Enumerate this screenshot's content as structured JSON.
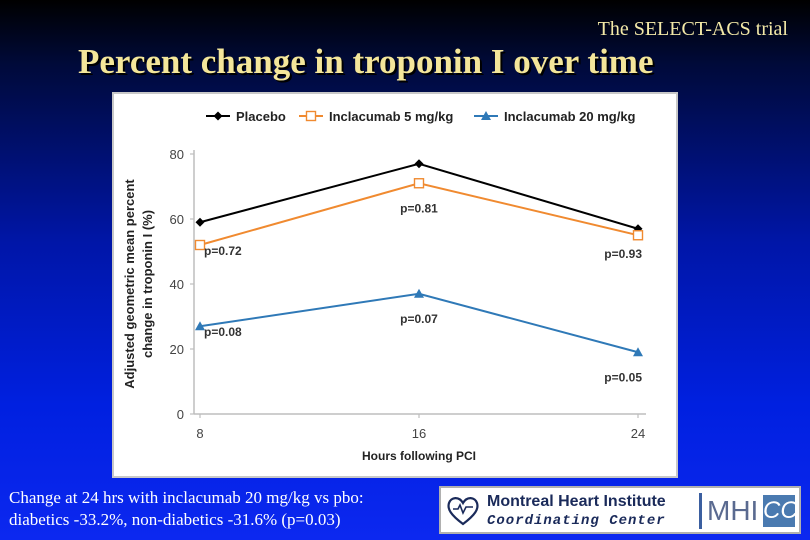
{
  "header": {
    "trial_label": "The SELECT-ACS trial",
    "title": "Percent change in troponin I over time"
  },
  "footnote": {
    "line1": "Change at 24 hrs with inclacumab 20 mg/kg vs pbo:",
    "line2": "diabetics -33.2%, non-diabetics -31.6% (p=0.03)"
  },
  "logo": {
    "line1": "Montreal Heart Institute",
    "line2": "Coordinating Center",
    "mhi": "MHI",
    "cc": "CC",
    "heart_icon": "heart-outline-icon"
  },
  "chart_data": {
    "type": "line",
    "x": [
      8,
      16,
      24
    ],
    "xlabel": "Hours following PCI",
    "ylabel_line1": "Adjusted geometric mean percent",
    "ylabel_line2": "change in troponin I (%)",
    "ylim": [
      0,
      80
    ],
    "yticks": [
      0,
      20,
      40,
      60,
      80
    ],
    "legend_placement": "top",
    "series": [
      {
        "name": "Placebo",
        "values": [
          59,
          77,
          57
        ],
        "color": "#000000",
        "marker": "diamond"
      },
      {
        "name": "Inclacumab 5 mg/kg",
        "values": [
          52,
          71,
          55
        ],
        "color": "#f08a30",
        "marker": "square-open"
      },
      {
        "name": "Inclacumab 20 mg/kg",
        "values": [
          27,
          37,
          19
        ],
        "color": "#2f79b7",
        "marker": "triangle"
      }
    ],
    "annotations": [
      {
        "text": "p=0.72",
        "x": 8,
        "y": 49
      },
      {
        "text": "p=0.81",
        "x": 16,
        "y": 62
      },
      {
        "text": "p=0.93",
        "x": 24,
        "y": 48
      },
      {
        "text": "p=0.08",
        "x": 8,
        "y": 24
      },
      {
        "text": "p=0.07",
        "x": 16,
        "y": 28
      },
      {
        "text": "p=0.05",
        "x": 24,
        "y": 10
      }
    ]
  }
}
